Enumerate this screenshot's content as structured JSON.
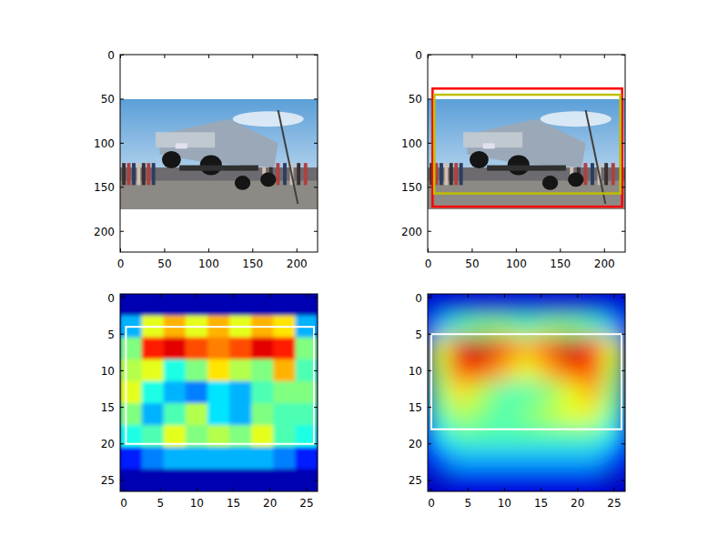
{
  "chart_data": [
    {
      "type": "image",
      "xlim": [
        -0.5,
        223.5
      ],
      "ylim": [
        223.5,
        -0.5
      ],
      "xticks": [
        0,
        50,
        100,
        150,
        200
      ],
      "yticks": [
        0,
        50,
        100,
        150,
        200
      ],
      "image_rows": [
        50,
        175
      ],
      "boxes": []
    },
    {
      "type": "image",
      "xlim": [
        -0.5,
        223.5
      ],
      "ylim": [
        223.5,
        -0.5
      ],
      "xticks": [
        0,
        50,
        100,
        150,
        200
      ],
      "yticks": [
        0,
        50,
        100,
        150,
        200
      ],
      "image_rows": [
        50,
        175
      ],
      "boxes": [
        {
          "color": "#ff0000",
          "x": [
            5,
            220
          ],
          "y": [
            38,
            172
          ]
        },
        {
          "color": "#bfbf00",
          "x": [
            7,
            218
          ],
          "y": [
            45,
            157
          ]
        }
      ]
    },
    {
      "type": "heatmap",
      "xlim": [
        -0.5,
        26.5
      ],
      "ylim": [
        26.5,
        -0.5
      ],
      "xticks": [
        0,
        5,
        10,
        15,
        20,
        25
      ],
      "yticks": [
        0,
        5,
        10,
        15,
        20,
        25
      ],
      "boxes": [
        {
          "color": "#ffffff",
          "x": [
            0.3,
            26
          ],
          "y": [
            4,
            20
          ]
        }
      ],
      "cells": [
        [
          0.05,
          0.05,
          0.05,
          0.05,
          0.05,
          0.05,
          0.05,
          0.05,
          0.05
        ],
        [
          0.3,
          0.6,
          0.7,
          0.6,
          0.7,
          0.6,
          0.7,
          0.65,
          0.3
        ],
        [
          0.5,
          0.85,
          0.9,
          0.8,
          0.75,
          0.8,
          0.9,
          0.85,
          0.5
        ],
        [
          0.55,
          0.6,
          0.4,
          0.5,
          0.65,
          0.55,
          0.5,
          0.7,
          0.45
        ],
        [
          0.6,
          0.4,
          0.3,
          0.25,
          0.35,
          0.3,
          0.45,
          0.5,
          0.5
        ],
        [
          0.5,
          0.3,
          0.45,
          0.55,
          0.35,
          0.3,
          0.5,
          0.45,
          0.45
        ],
        [
          0.4,
          0.45,
          0.6,
          0.5,
          0.55,
          0.5,
          0.6,
          0.45,
          0.4
        ],
        [
          0.15,
          0.25,
          0.3,
          0.3,
          0.3,
          0.3,
          0.3,
          0.25,
          0.15
        ],
        [
          0.05,
          0.05,
          0.05,
          0.05,
          0.05,
          0.05,
          0.05,
          0.05,
          0.05
        ]
      ]
    },
    {
      "type": "heatmap",
      "xlim": [
        -0.5,
        26.5
      ],
      "ylim": [
        26.5,
        -0.5
      ],
      "xticks": [
        0,
        5,
        10,
        15,
        20,
        25
      ],
      "yticks": [
        0,
        5,
        10,
        15,
        20,
        25
      ],
      "boxes": [
        {
          "color": "#ffffff",
          "x": [
            0,
            26
          ],
          "y": [
            5,
            18
          ]
        }
      ],
      "cells": [
        [
          0.08,
          0.08,
          0.08,
          0.08,
          0.08,
          0.08,
          0.08,
          0.08,
          0.08
        ],
        [
          0.3,
          0.45,
          0.5,
          0.5,
          0.45,
          0.5,
          0.5,
          0.45,
          0.3
        ],
        [
          0.6,
          0.9,
          0.95,
          0.8,
          0.7,
          0.8,
          0.95,
          0.85,
          0.6
        ],
        [
          0.55,
          0.8,
          0.8,
          0.7,
          0.6,
          0.7,
          0.8,
          0.8,
          0.55
        ],
        [
          0.5,
          0.65,
          0.55,
          0.45,
          0.45,
          0.5,
          0.6,
          0.7,
          0.5
        ],
        [
          0.45,
          0.55,
          0.5,
          0.45,
          0.5,
          0.55,
          0.6,
          0.6,
          0.45
        ],
        [
          0.35,
          0.45,
          0.45,
          0.45,
          0.45,
          0.45,
          0.45,
          0.45,
          0.35
        ],
        [
          0.2,
          0.3,
          0.3,
          0.3,
          0.3,
          0.3,
          0.3,
          0.3,
          0.2
        ],
        [
          0.05,
          0.1,
          0.1,
          0.1,
          0.1,
          0.1,
          0.1,
          0.1,
          0.05
        ]
      ]
    }
  ]
}
